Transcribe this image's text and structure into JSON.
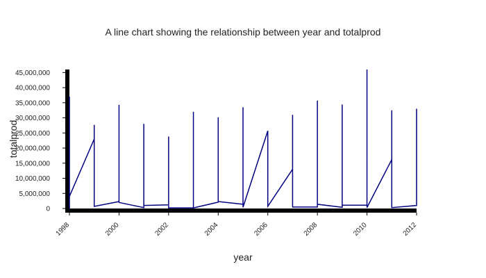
{
  "chart_data": {
    "type": "line",
    "title": "A line chart showing the relationship between year and totalprod",
    "xlabel": "year",
    "ylabel": "totalprod",
    "xlim": [
      1998,
      2012
    ],
    "ylim": [
      0,
      46000000
    ],
    "x_ticks": [
      1998,
      2000,
      2002,
      2004,
      2006,
      2008,
      2010,
      2012
    ],
    "y_ticks": [
      0,
      5000000,
      10000000,
      15000000,
      20000000,
      25000000,
      30000000,
      35000000,
      40000000,
      45000000
    ],
    "x_tick_labels": [
      "1998",
      "2000",
      "2002",
      "2004",
      "2006",
      "2008",
      "2010",
      "2012"
    ],
    "y_tick_labels": [
      "0",
      "5,000,000",
      "10,000,000",
      "15,000,000",
      "20,000,000",
      "25,000,000",
      "30,000,000",
      "35,000,000",
      "40,000,000",
      "45,000,000"
    ],
    "grid": false,
    "line_color": "#000080",
    "axis_color": "#000000",
    "series": [
      {
        "values": [
          [
            1998,
            0
          ],
          [
            1998,
            37000000
          ],
          [
            1998,
            4000000
          ],
          [
            1999,
            23000000
          ],
          [
            1999,
            27700000
          ],
          [
            1999,
            700000
          ],
          [
            2000,
            2300000
          ],
          [
            2000,
            34300000
          ],
          [
            2000,
            2000000
          ],
          [
            2001,
            300000
          ],
          [
            2001,
            28000000
          ],
          [
            2001,
            1000000
          ],
          [
            2002,
            1200000
          ],
          [
            2002,
            23800000
          ],
          [
            2002,
            200000
          ],
          [
            2003,
            200000
          ],
          [
            2003,
            32000000
          ],
          [
            2003,
            200000
          ],
          [
            2004,
            2100000
          ],
          [
            2004,
            30200000
          ],
          [
            2004,
            2300000
          ],
          [
            2005,
            1400000
          ],
          [
            2005,
            33500000
          ],
          [
            2005,
            400000
          ],
          [
            2006,
            25700000
          ],
          [
            2006,
            25700000
          ],
          [
            2006,
            700000
          ],
          [
            2007,
            13000000
          ],
          [
            2007,
            31000000
          ],
          [
            2007,
            500000
          ],
          [
            2008,
            500000
          ],
          [
            2008,
            35700000
          ],
          [
            2008,
            1400000
          ],
          [
            2009,
            400000
          ],
          [
            2009,
            34400000
          ],
          [
            2009,
            1100000
          ],
          [
            2010,
            1100000
          ],
          [
            2010,
            46000000
          ],
          [
            2010,
            300000
          ],
          [
            2011,
            16200000
          ],
          [
            2011,
            32500000
          ],
          [
            2011,
            300000
          ],
          [
            2012,
            1000000
          ],
          [
            2012,
            33000000
          ],
          [
            2012,
            1000000
          ]
        ]
      }
    ]
  }
}
